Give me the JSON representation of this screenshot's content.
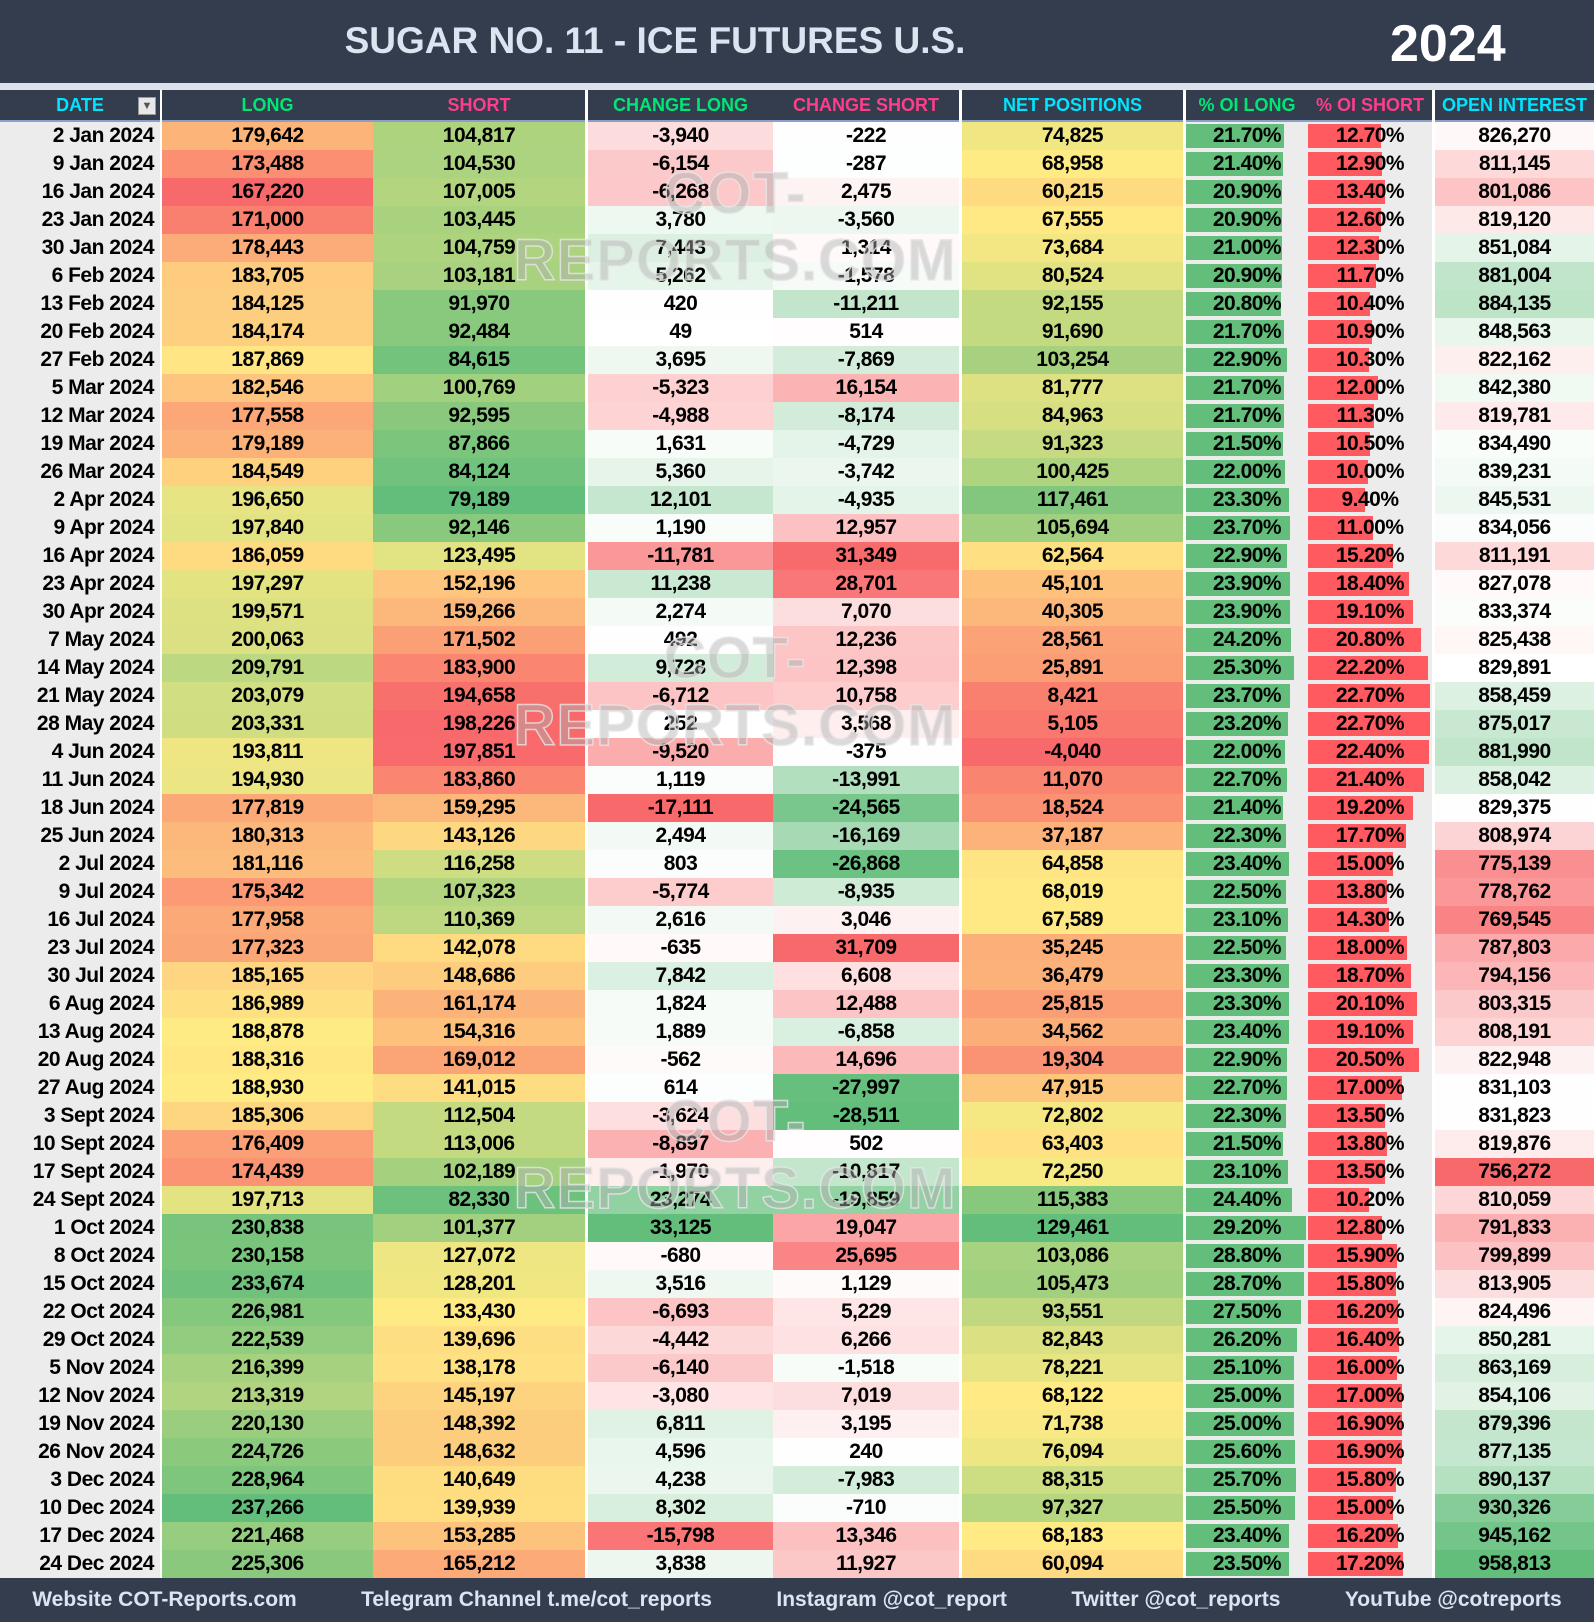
{
  "header": {
    "title": "SUGAR NO. 11 - ICE FUTURES U.S.",
    "year": "2024"
  },
  "columns": [
    {
      "label": "DATE",
      "color": "#00e5ff"
    },
    {
      "label": "LONG",
      "color": "#00e676"
    },
    {
      "label": "SHORT",
      "color": "#ff3d8b"
    },
    {
      "label": "CHANGE LONG",
      "color": "#00e676"
    },
    {
      "label": "CHANGE SHORT",
      "color": "#ff3d8b"
    },
    {
      "label": "NET POSITIONS",
      "color": "#00e5ff"
    },
    {
      "label": "% OI LONG",
      "color": "#00e676"
    },
    {
      "label": "% OI SHORT",
      "color": "#ff3d8b"
    },
    {
      "label": "OPEN INTEREST",
      "color": "#00e5ff"
    }
  ],
  "filter_icon": "filter-icon",
  "watermark": "COT-REPORTS.COM",
  "colors": {
    "red": "#f8696b",
    "yellow": "#ffeb84",
    "green": "#63be7b",
    "white": "#ffffff",
    "bar_green": "#63be7b",
    "bar_red": "#ff5a5f",
    "header_bg": "#333d4e"
  },
  "chart_data": {
    "type": "table",
    "title": "SUGAR NO. 11 - ICE FUTURES U.S.",
    "year": "2024",
    "rows": [
      [
        "2 Jan 2024",
        "179,642",
        "104,817",
        "-3,940",
        "-222",
        "74,825",
        "21.70%",
        "12.70%",
        "826,270"
      ],
      [
        "9 Jan 2024",
        "173,488",
        "104,530",
        "-6,154",
        "-287",
        "68,958",
        "21.40%",
        "12.90%",
        "811,145"
      ],
      [
        "16 Jan 2024",
        "167,220",
        "107,005",
        "-6,268",
        "2,475",
        "60,215",
        "20.90%",
        "13.40%",
        "801,086"
      ],
      [
        "23 Jan 2024",
        "171,000",
        "103,445",
        "3,780",
        "-3,560",
        "67,555",
        "20.90%",
        "12.60%",
        "819,120"
      ],
      [
        "30 Jan 2024",
        "178,443",
        "104,759",
        "7,443",
        "1,314",
        "73,684",
        "21.00%",
        "12.30%",
        "851,084"
      ],
      [
        "6 Feb 2024",
        "183,705",
        "103,181",
        "5,262",
        "-1,578",
        "80,524",
        "20.90%",
        "11.70%",
        "881,004"
      ],
      [
        "13 Feb 2024",
        "184,125",
        "91,970",
        "420",
        "-11,211",
        "92,155",
        "20.80%",
        "10.40%",
        "884,135"
      ],
      [
        "20 Feb 2024",
        "184,174",
        "92,484",
        "49",
        "514",
        "91,690",
        "21.70%",
        "10.90%",
        "848,563"
      ],
      [
        "27 Feb 2024",
        "187,869",
        "84,615",
        "3,695",
        "-7,869",
        "103,254",
        "22.90%",
        "10.30%",
        "822,162"
      ],
      [
        "5 Mar 2024",
        "182,546",
        "100,769",
        "-5,323",
        "16,154",
        "81,777",
        "21.70%",
        "12.00%",
        "842,380"
      ],
      [
        "12 Mar 2024",
        "177,558",
        "92,595",
        "-4,988",
        "-8,174",
        "84,963",
        "21.70%",
        "11.30%",
        "819,781"
      ],
      [
        "19 Mar 2024",
        "179,189",
        "87,866",
        "1,631",
        "-4,729",
        "91,323",
        "21.50%",
        "10.50%",
        "834,490"
      ],
      [
        "26 Mar 2024",
        "184,549",
        "84,124",
        "5,360",
        "-3,742",
        "100,425",
        "22.00%",
        "10.00%",
        "839,231"
      ],
      [
        "2 Apr 2024",
        "196,650",
        "79,189",
        "12,101",
        "-4,935",
        "117,461",
        "23.30%",
        "9.40%",
        "845,531"
      ],
      [
        "9 Apr 2024",
        "197,840",
        "92,146",
        "1,190",
        "12,957",
        "105,694",
        "23.70%",
        "11.00%",
        "834,056"
      ],
      [
        "16 Apr 2024",
        "186,059",
        "123,495",
        "-11,781",
        "31,349",
        "62,564",
        "22.90%",
        "15.20%",
        "811,191"
      ],
      [
        "23 Apr 2024",
        "197,297",
        "152,196",
        "11,238",
        "28,701",
        "45,101",
        "23.90%",
        "18.40%",
        "827,078"
      ],
      [
        "30 Apr 2024",
        "199,571",
        "159,266",
        "2,274",
        "7,070",
        "40,305",
        "23.90%",
        "19.10%",
        "833,374"
      ],
      [
        "7 May 2024",
        "200,063",
        "171,502",
        "492",
        "12,236",
        "28,561",
        "24.20%",
        "20.80%",
        "825,438"
      ],
      [
        "14 May 2024",
        "209,791",
        "183,900",
        "9,728",
        "12,398",
        "25,891",
        "25.30%",
        "22.20%",
        "829,891"
      ],
      [
        "21 May 2024",
        "203,079",
        "194,658",
        "-6,712",
        "10,758",
        "8,421",
        "23.70%",
        "22.70%",
        "858,459"
      ],
      [
        "28 May 2024",
        "203,331",
        "198,226",
        "252",
        "3,568",
        "5,105",
        "23.20%",
        "22.70%",
        "875,017"
      ],
      [
        "4 Jun 2024",
        "193,811",
        "197,851",
        "-9,520",
        "-375",
        "-4,040",
        "22.00%",
        "22.40%",
        "881,990"
      ],
      [
        "11 Jun 2024",
        "194,930",
        "183,860",
        "1,119",
        "-13,991",
        "11,070",
        "22.70%",
        "21.40%",
        "858,042"
      ],
      [
        "18 Jun 2024",
        "177,819",
        "159,295",
        "-17,111",
        "-24,565",
        "18,524",
        "21.40%",
        "19.20%",
        "829,375"
      ],
      [
        "25 Jun 2024",
        "180,313",
        "143,126",
        "2,494",
        "-16,169",
        "37,187",
        "22.30%",
        "17.70%",
        "808,974"
      ],
      [
        "2 Jul 2024",
        "181,116",
        "116,258",
        "803",
        "-26,868",
        "64,858",
        "23.40%",
        "15.00%",
        "775,139"
      ],
      [
        "9 Jul 2024",
        "175,342",
        "107,323",
        "-5,774",
        "-8,935",
        "68,019",
        "22.50%",
        "13.80%",
        "778,762"
      ],
      [
        "16 Jul 2024",
        "177,958",
        "110,369",
        "2,616",
        "3,046",
        "67,589",
        "23.10%",
        "14.30%",
        "769,545"
      ],
      [
        "23 Jul 2024",
        "177,323",
        "142,078",
        "-635",
        "31,709",
        "35,245",
        "22.50%",
        "18.00%",
        "787,803"
      ],
      [
        "30 Jul 2024",
        "185,165",
        "148,686",
        "7,842",
        "6,608",
        "36,479",
        "23.30%",
        "18.70%",
        "794,156"
      ],
      [
        "6 Aug 2024",
        "186,989",
        "161,174",
        "1,824",
        "12,488",
        "25,815",
        "23.30%",
        "20.10%",
        "803,315"
      ],
      [
        "13 Aug 2024",
        "188,878",
        "154,316",
        "1,889",
        "-6,858",
        "34,562",
        "23.40%",
        "19.10%",
        "808,191"
      ],
      [
        "20 Aug 2024",
        "188,316",
        "169,012",
        "-562",
        "14,696",
        "19,304",
        "22.90%",
        "20.50%",
        "822,948"
      ],
      [
        "27 Aug 2024",
        "188,930",
        "141,015",
        "614",
        "-27,997",
        "47,915",
        "22.70%",
        "17.00%",
        "831,103"
      ],
      [
        "3 Sept 2024",
        "185,306",
        "112,504",
        "-3,624",
        "-28,511",
        "72,802",
        "22.30%",
        "13.50%",
        "831,823"
      ],
      [
        "10 Sept 2024",
        "176,409",
        "113,006",
        "-8,897",
        "502",
        "63,403",
        "21.50%",
        "13.80%",
        "819,876"
      ],
      [
        "17 Sept 2024",
        "174,439",
        "102,189",
        "-1,970",
        "-10,817",
        "72,250",
        "23.10%",
        "13.50%",
        "756,272"
      ],
      [
        "24 Sept 2024",
        "197,713",
        "82,330",
        "23,274",
        "-19,859",
        "115,383",
        "24.40%",
        "10.20%",
        "810,059"
      ],
      [
        "1 Oct 2024",
        "230,838",
        "101,377",
        "33,125",
        "19,047",
        "129,461",
        "29.20%",
        "12.80%",
        "791,833"
      ],
      [
        "8 Oct 2024",
        "230,158",
        "127,072",
        "-680",
        "25,695",
        "103,086",
        "28.80%",
        "15.90%",
        "799,899"
      ],
      [
        "15 Oct 2024",
        "233,674",
        "128,201",
        "3,516",
        "1,129",
        "105,473",
        "28.70%",
        "15.80%",
        "813,905"
      ],
      [
        "22 Oct 2024",
        "226,981",
        "133,430",
        "-6,693",
        "5,229",
        "93,551",
        "27.50%",
        "16.20%",
        "824,496"
      ],
      [
        "29 Oct 2024",
        "222,539",
        "139,696",
        "-4,442",
        "6,266",
        "82,843",
        "26.20%",
        "16.40%",
        "850,281"
      ],
      [
        "5 Nov 2024",
        "216,399",
        "138,178",
        "-6,140",
        "-1,518",
        "78,221",
        "25.10%",
        "16.00%",
        "863,169"
      ],
      [
        "12 Nov 2024",
        "213,319",
        "145,197",
        "-3,080",
        "7,019",
        "68,122",
        "25.00%",
        "17.00%",
        "854,106"
      ],
      [
        "19 Nov 2024",
        "220,130",
        "148,392",
        "6,811",
        "3,195",
        "71,738",
        "25.00%",
        "16.90%",
        "879,396"
      ],
      [
        "26 Nov 2024",
        "224,726",
        "148,632",
        "4,596",
        "240",
        "76,094",
        "25.60%",
        "16.90%",
        "877,135"
      ],
      [
        "3 Dec 2024",
        "228,964",
        "140,649",
        "4,238",
        "-7,983",
        "88,315",
        "25.70%",
        "15.80%",
        "890,137"
      ],
      [
        "10 Dec 2024",
        "237,266",
        "139,939",
        "8,302",
        "-710",
        "97,327",
        "25.50%",
        "15.00%",
        "930,326"
      ],
      [
        "17 Dec 2024",
        "221,468",
        "153,285",
        "-15,798",
        "13,346",
        "68,183",
        "23.40%",
        "16.20%",
        "945,162"
      ],
      [
        "24 Dec 2024",
        "225,306",
        "165,212",
        "3,838",
        "11,927",
        "60,094",
        "23.50%",
        "17.20%",
        "958,813"
      ]
    ]
  },
  "footer": {
    "website": "Website COT-Reports.com",
    "telegram": "Telegram Channel t.me/cot_reports",
    "instagram": "Instagram @cot_report",
    "twitter": "Twitter @cot_reports",
    "youtube": "YouTube @cotreports"
  }
}
